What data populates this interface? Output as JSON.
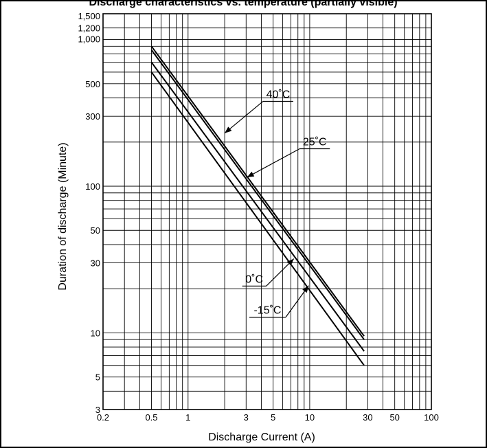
{
  "chart_data": {
    "type": "line",
    "title": "Discharge characteristics vs. temperature (partially visible)",
    "xlabel": "Discharge Current (A)",
    "ylabel": "Duration of discharge (Minute)",
    "x_scale": "log",
    "y_scale": "log",
    "xlim": [
      0.2,
      100
    ],
    "ylim": [
      3,
      1500
    ],
    "grid": true,
    "x_ticks": [
      {
        "value": 0.2,
        "label": "0.2"
      },
      {
        "value": 0.5,
        "label": "0.5"
      },
      {
        "value": 1,
        "label": "1"
      },
      {
        "value": 3,
        "label": "3"
      },
      {
        "value": 5,
        "label": "5"
      },
      {
        "value": 10,
        "label": "10"
      },
      {
        "value": 30,
        "label": "30"
      },
      {
        "value": 50,
        "label": "50"
      },
      {
        "value": 100,
        "label": "100"
      }
    ],
    "y_ticks": [
      {
        "value": 3,
        "label": "3"
      },
      {
        "value": 5,
        "label": "5"
      },
      {
        "value": 10,
        "label": "10"
      },
      {
        "value": 30,
        "label": "30"
      },
      {
        "value": 50,
        "label": "50"
      },
      {
        "value": 100,
        "label": "100"
      },
      {
        "value": 300,
        "label": "300"
      },
      {
        "value": 500,
        "label": "500"
      },
      {
        "value": 1000,
        "label": "1,000"
      },
      {
        "value": 1200,
        "label": "1,200"
      },
      {
        "value": 1500,
        "label": "1,500"
      }
    ],
    "series": [
      {
        "name": "40˚C",
        "x": [
          0.5,
          28
        ],
        "y": [
          900,
          9.5
        ]
      },
      {
        "name": "25˚C",
        "x": [
          0.5,
          28
        ],
        "y": [
          850,
          9
        ]
      },
      {
        "name": "0˚C",
        "x": [
          0.5,
          28
        ],
        "y": [
          700,
          7.5
        ]
      },
      {
        "name": "-15˚C",
        "x": [
          0.5,
          28
        ],
        "y": [
          600,
          6
        ]
      }
    ],
    "annotations": [
      {
        "series": "40˚C",
        "text": "40˚C",
        "label_at": [
          5.5,
          400
        ],
        "arrow_to": [
          2.0,
          230
        ]
      },
      {
        "series": "25˚C",
        "text": "25˚C",
        "label_at": [
          11,
          190
        ],
        "arrow_to": [
          3.05,
          115
        ]
      },
      {
        "series": "0˚C",
        "text": "0˚C",
        "label_at": [
          3.5,
          22
        ],
        "arrow_to": [
          7.4,
          32
        ]
      },
      {
        "series": "-15˚C",
        "text": "-15˚C",
        "label_at": [
          4.5,
          13.5
        ],
        "arrow_to": [
          9.8,
          21
        ]
      }
    ]
  }
}
